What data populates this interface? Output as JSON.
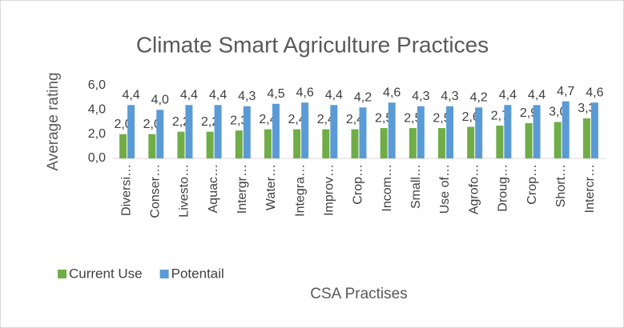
{
  "chart_data": {
    "type": "bar",
    "title": "Climate Smart Agriculture Practices",
    "y_label": "Average rating",
    "x_label": "CSA Practises",
    "categories": [
      "Diversi…",
      "Conser…",
      "Livesto…",
      "Aquac…",
      "Intergr…",
      "Water…",
      "Integra…",
      "Improv…",
      "Crop…",
      "Incom…",
      "Small…",
      "Use of…",
      "Agrofo…",
      "Droug…",
      "Crop…",
      "Short…",
      "Intercr…"
    ],
    "series": [
      {
        "name": "Current Use",
        "color": "#70ad47",
        "values": [
          2.0,
          2.0,
          2.2,
          2.2,
          2.3,
          2.4,
          2.4,
          2.4,
          2.4,
          2.5,
          2.5,
          2.5,
          2.6,
          2.7,
          2.9,
          3.0,
          3.3
        ],
        "value_labels": [
          "2,0",
          "2,0",
          "2,2",
          "2,2",
          "2,3",
          "2,4",
          "2,4",
          "2,4",
          "2,4",
          "2,5",
          "2,5",
          "2,5",
          "2,6",
          "2,7",
          "2,9",
          "3,0",
          "3,3"
        ]
      },
      {
        "name": "Potentail",
        "color": "#5b9bd5",
        "values": [
          4.4,
          4.0,
          4.4,
          4.4,
          4.3,
          4.5,
          4.6,
          4.4,
          4.2,
          4.6,
          4.3,
          4.3,
          4.2,
          4.4,
          4.4,
          4.7,
          4.6
        ],
        "value_labels": [
          "4,4",
          "4,0",
          "4,4",
          "4,4",
          "4,3",
          "4,5",
          "4,6",
          "4,4",
          "4,2",
          "4,6",
          "4,3",
          "4,3",
          "4,2",
          "4,4",
          "4,4",
          "4,7",
          "4,6"
        ]
      }
    ],
    "ylim": [
      0,
      6
    ],
    "yticks": [
      {
        "value": 0,
        "label": "0,0"
      },
      {
        "value": 2,
        "label": "2,0"
      },
      {
        "value": 4,
        "label": "4,0"
      },
      {
        "value": 6,
        "label": "6,0"
      }
    ],
    "legend": "bottom-left"
  }
}
